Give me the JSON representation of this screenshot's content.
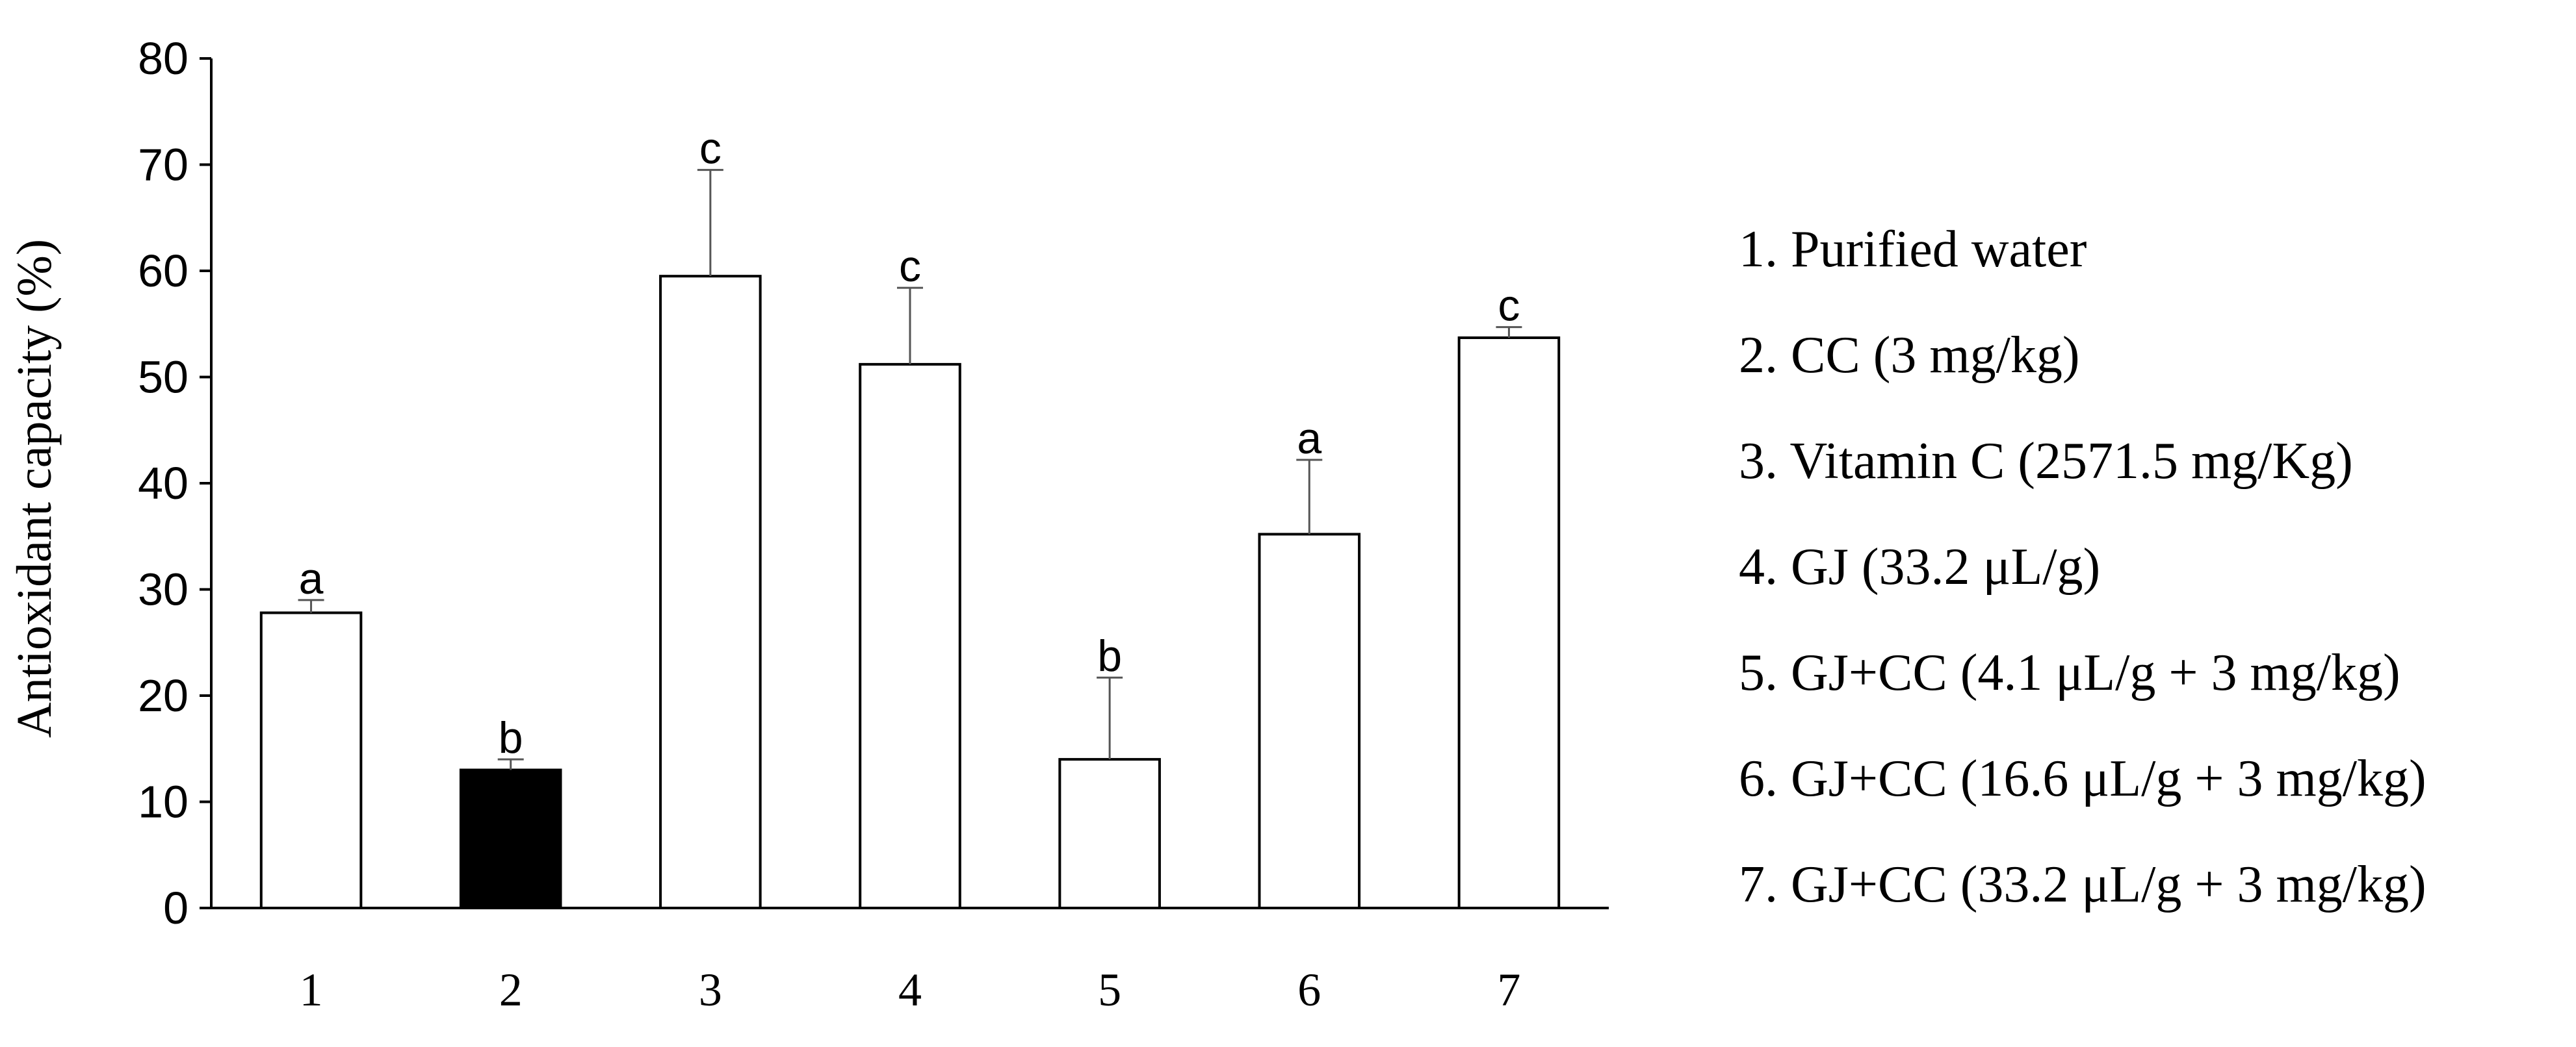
{
  "chart_data": {
    "type": "bar",
    "categories": [
      "1",
      "2",
      "3",
      "4",
      "5",
      "6",
      "7"
    ],
    "values": [
      27.8,
      13.0,
      59.5,
      51.2,
      14.0,
      35.2,
      53.7
    ],
    "errors": [
      1.2,
      1.0,
      10.0,
      7.2,
      7.7,
      7.0,
      1.0
    ],
    "significance": [
      "a",
      "b",
      "c",
      "c",
      "b",
      "a",
      "c"
    ],
    "fills": [
      "#ffffff",
      "#000000",
      "#ffffff",
      "#ffffff",
      "#ffffff",
      "#ffffff",
      "#ffffff"
    ],
    "ylabel": "Antioxidant capacity (%)",
    "xlabel": "",
    "title": "",
    "ylim": [
      0,
      80
    ],
    "yticks": [
      0,
      10,
      20,
      30,
      40,
      50,
      60,
      70,
      80
    ],
    "grid": false,
    "legend_position": "right",
    "legend": [
      "1. Purified water",
      "2. CC (3 mg/kg)",
      "3. Vitamin C (2571.5 mg/Kg)",
      "4. GJ (33.2 μL/g)",
      "5. GJ+CC (4.1 μL/g + 3 mg/kg)",
      "6. GJ+CC (16.6 μL/g + 3 mg/kg)",
      "7. GJ+CC (33.2 μL/g + 3 mg/kg)"
    ]
  }
}
